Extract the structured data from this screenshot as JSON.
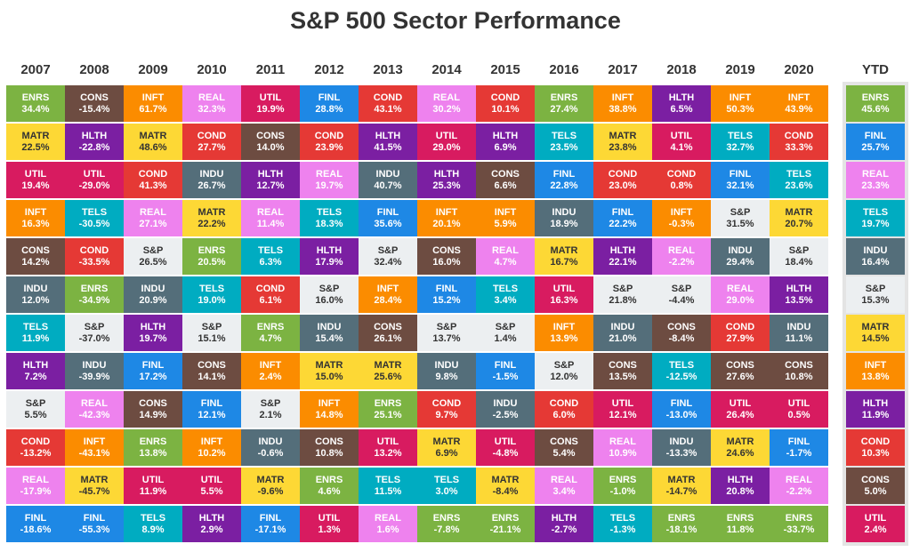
{
  "title": "S&P 500 Sector Performance",
  "colors": {
    "ENRS": "#7cb342",
    "CONS": "#6d4c41",
    "INFT": "#fb8c00",
    "REAL": "#ee82ee",
    "UTIL": "#d81b60",
    "FINL": "#1e88e5",
    "COND": "#e53935",
    "HLTH": "#7b1fa2",
    "MATR": "#fdd835",
    "TELS": "#00acc1",
    "INDU": "#546e7a",
    "S&P": "#eceff1"
  },
  "chart_data": {
    "type": "table",
    "title": "S&P 500 Sector Performance",
    "columns": [
      {
        "label": "2007",
        "cells": [
          {
            "sector": "ENRS",
            "value": "34.4%"
          },
          {
            "sector": "MATR",
            "value": "22.5%"
          },
          {
            "sector": "UTIL",
            "value": "19.4%"
          },
          {
            "sector": "INFT",
            "value": "16.3%"
          },
          {
            "sector": "CONS",
            "value": "14.2%"
          },
          {
            "sector": "INDU",
            "value": "12.0%"
          },
          {
            "sector": "TELS",
            "value": "11.9%"
          },
          {
            "sector": "HLTH",
            "value": "7.2%"
          },
          {
            "sector": "S&P",
            "value": "5.5%"
          },
          {
            "sector": "COND",
            "value": "-13.2%"
          },
          {
            "sector": "REAL",
            "value": "-17.9%"
          },
          {
            "sector": "FINL",
            "value": "-18.6%"
          }
        ]
      },
      {
        "label": "2008",
        "cells": [
          {
            "sector": "CONS",
            "value": "-15.4%"
          },
          {
            "sector": "HLTH",
            "value": "-22.8%"
          },
          {
            "sector": "UTIL",
            "value": "-29.0%"
          },
          {
            "sector": "TELS",
            "value": "-30.5%"
          },
          {
            "sector": "COND",
            "value": "-33.5%"
          },
          {
            "sector": "ENRS",
            "value": "-34.9%"
          },
          {
            "sector": "S&P",
            "value": "-37.0%"
          },
          {
            "sector": "INDU",
            "value": "-39.9%"
          },
          {
            "sector": "REAL",
            "value": "-42.3%"
          },
          {
            "sector": "INFT",
            "value": "-43.1%"
          },
          {
            "sector": "MATR",
            "value": "-45.7%"
          },
          {
            "sector": "FINL",
            "value": "-55.3%"
          }
        ]
      },
      {
        "label": "2009",
        "cells": [
          {
            "sector": "INFT",
            "value": "61.7%"
          },
          {
            "sector": "MATR",
            "value": "48.6%"
          },
          {
            "sector": "COND",
            "value": "41.3%"
          },
          {
            "sector": "REAL",
            "value": "27.1%"
          },
          {
            "sector": "S&P",
            "value": "26.5%"
          },
          {
            "sector": "INDU",
            "value": "20.9%"
          },
          {
            "sector": "HLTH",
            "value": "19.7%"
          },
          {
            "sector": "FINL",
            "value": "17.2%"
          },
          {
            "sector": "CONS",
            "value": "14.9%"
          },
          {
            "sector": "ENRS",
            "value": "13.8%"
          },
          {
            "sector": "UTIL",
            "value": "11.9%"
          },
          {
            "sector": "TELS",
            "value": "8.9%"
          }
        ]
      },
      {
        "label": "2010",
        "cells": [
          {
            "sector": "REAL",
            "value": "32.3%"
          },
          {
            "sector": "COND",
            "value": "27.7%"
          },
          {
            "sector": "INDU",
            "value": "26.7%"
          },
          {
            "sector": "MATR",
            "value": "22.2%"
          },
          {
            "sector": "ENRS",
            "value": "20.5%"
          },
          {
            "sector": "TELS",
            "value": "19.0%"
          },
          {
            "sector": "S&P",
            "value": "15.1%"
          },
          {
            "sector": "CONS",
            "value": "14.1%"
          },
          {
            "sector": "FINL",
            "value": "12.1%"
          },
          {
            "sector": "INFT",
            "value": "10.2%"
          },
          {
            "sector": "UTIL",
            "value": "5.5%"
          },
          {
            "sector": "HLTH",
            "value": "2.9%"
          }
        ]
      },
      {
        "label": "2011",
        "cells": [
          {
            "sector": "UTIL",
            "value": "19.9%"
          },
          {
            "sector": "CONS",
            "value": "14.0%"
          },
          {
            "sector": "HLTH",
            "value": "12.7%"
          },
          {
            "sector": "REAL",
            "value": "11.4%"
          },
          {
            "sector": "TELS",
            "value": "6.3%"
          },
          {
            "sector": "COND",
            "value": "6.1%"
          },
          {
            "sector": "ENRS",
            "value": "4.7%"
          },
          {
            "sector": "INFT",
            "value": "2.4%"
          },
          {
            "sector": "S&P",
            "value": "2.1%"
          },
          {
            "sector": "INDU",
            "value": "-0.6%"
          },
          {
            "sector": "MATR",
            "value": "-9.6%"
          },
          {
            "sector": "FINL",
            "value": "-17.1%"
          }
        ]
      },
      {
        "label": "2012",
        "cells": [
          {
            "sector": "FINL",
            "value": "28.8%"
          },
          {
            "sector": "COND",
            "value": "23.9%"
          },
          {
            "sector": "REAL",
            "value": "19.7%"
          },
          {
            "sector": "TELS",
            "value": "18.3%"
          },
          {
            "sector": "HLTH",
            "value": "17.9%"
          },
          {
            "sector": "S&P",
            "value": "16.0%"
          },
          {
            "sector": "INDU",
            "value": "15.4%"
          },
          {
            "sector": "MATR",
            "value": "15.0%"
          },
          {
            "sector": "INFT",
            "value": "14.8%"
          },
          {
            "sector": "CONS",
            "value": "10.8%"
          },
          {
            "sector": "ENRS",
            "value": "4.6%"
          },
          {
            "sector": "UTIL",
            "value": "1.3%"
          }
        ]
      },
      {
        "label": "2013",
        "cells": [
          {
            "sector": "COND",
            "value": "43.1%"
          },
          {
            "sector": "HLTH",
            "value": "41.5%"
          },
          {
            "sector": "INDU",
            "value": "40.7%"
          },
          {
            "sector": "FINL",
            "value": "35.6%"
          },
          {
            "sector": "S&P",
            "value": "32.4%"
          },
          {
            "sector": "INFT",
            "value": "28.4%"
          },
          {
            "sector": "CONS",
            "value": "26.1%"
          },
          {
            "sector": "MATR",
            "value": "25.6%"
          },
          {
            "sector": "ENRS",
            "value": "25.1%"
          },
          {
            "sector": "UTIL",
            "value": "13.2%"
          },
          {
            "sector": "TELS",
            "value": "11.5%"
          },
          {
            "sector": "REAL",
            "value": "1.6%"
          }
        ]
      },
      {
        "label": "2014",
        "cells": [
          {
            "sector": "REAL",
            "value": "30.2%"
          },
          {
            "sector": "UTIL",
            "value": "29.0%"
          },
          {
            "sector": "HLTH",
            "value": "25.3%"
          },
          {
            "sector": "INFT",
            "value": "20.1%"
          },
          {
            "sector": "CONS",
            "value": "16.0%"
          },
          {
            "sector": "FINL",
            "value": "15.2%"
          },
          {
            "sector": "S&P",
            "value": "13.7%"
          },
          {
            "sector": "INDU",
            "value": "9.8%"
          },
          {
            "sector": "COND",
            "value": "9.7%"
          },
          {
            "sector": "MATR",
            "value": "6.9%"
          },
          {
            "sector": "TELS",
            "value": "3.0%"
          },
          {
            "sector": "ENRS",
            "value": "-7.8%"
          }
        ]
      },
      {
        "label": "2015",
        "cells": [
          {
            "sector": "COND",
            "value": "10.1%"
          },
          {
            "sector": "HLTH",
            "value": "6.9%"
          },
          {
            "sector": "CONS",
            "value": "6.6%"
          },
          {
            "sector": "INFT",
            "value": "5.9%"
          },
          {
            "sector": "REAL",
            "value": "4.7%"
          },
          {
            "sector": "TELS",
            "value": "3.4%"
          },
          {
            "sector": "S&P",
            "value": "1.4%"
          },
          {
            "sector": "FINL",
            "value": "-1.5%"
          },
          {
            "sector": "INDU",
            "value": "-2.5%"
          },
          {
            "sector": "UTIL",
            "value": "-4.8%"
          },
          {
            "sector": "MATR",
            "value": "-8.4%"
          },
          {
            "sector": "ENRS",
            "value": "-21.1%"
          }
        ]
      },
      {
        "label": "2016",
        "cells": [
          {
            "sector": "ENRS",
            "value": "27.4%"
          },
          {
            "sector": "TELS",
            "value": "23.5%"
          },
          {
            "sector": "FINL",
            "value": "22.8%"
          },
          {
            "sector": "INDU",
            "value": "18.9%"
          },
          {
            "sector": "MATR",
            "value": "16.7%"
          },
          {
            "sector": "UTIL",
            "value": "16.3%"
          },
          {
            "sector": "INFT",
            "value": "13.9%"
          },
          {
            "sector": "S&P",
            "value": "12.0%"
          },
          {
            "sector": "COND",
            "value": "6.0%"
          },
          {
            "sector": "CONS",
            "value": "5.4%"
          },
          {
            "sector": "REAL",
            "value": "3.4%"
          },
          {
            "sector": "HLTH",
            "value": "-2.7%"
          }
        ]
      },
      {
        "label": "2017",
        "cells": [
          {
            "sector": "INFT",
            "value": "38.8%"
          },
          {
            "sector": "MATR",
            "value": "23.8%"
          },
          {
            "sector": "COND",
            "value": "23.0%"
          },
          {
            "sector": "FINL",
            "value": "22.2%"
          },
          {
            "sector": "HLTH",
            "value": "22.1%"
          },
          {
            "sector": "S&P",
            "value": "21.8%"
          },
          {
            "sector": "INDU",
            "value": "21.0%"
          },
          {
            "sector": "CONS",
            "value": "13.5%"
          },
          {
            "sector": "UTIL",
            "value": "12.1%"
          },
          {
            "sector": "REAL",
            "value": "10.9%"
          },
          {
            "sector": "ENRS",
            "value": "-1.0%"
          },
          {
            "sector": "TELS",
            "value": "-1.3%"
          }
        ]
      },
      {
        "label": "2018",
        "cells": [
          {
            "sector": "HLTH",
            "value": "6.5%"
          },
          {
            "sector": "UTIL",
            "value": "4.1%"
          },
          {
            "sector": "COND",
            "value": "0.8%"
          },
          {
            "sector": "INFT",
            "value": "-0.3%"
          },
          {
            "sector": "REAL",
            "value": "-2.2%"
          },
          {
            "sector": "S&P",
            "value": "-4.4%"
          },
          {
            "sector": "CONS",
            "value": "-8.4%"
          },
          {
            "sector": "TELS",
            "value": "-12.5%"
          },
          {
            "sector": "FINL",
            "value": "-13.0%"
          },
          {
            "sector": "INDU",
            "value": "-13.3%"
          },
          {
            "sector": "MATR",
            "value": "-14.7%"
          },
          {
            "sector": "ENRS",
            "value": "-18.1%"
          }
        ]
      },
      {
        "label": "2019",
        "cells": [
          {
            "sector": "INFT",
            "value": "50.3%"
          },
          {
            "sector": "TELS",
            "value": "32.7%"
          },
          {
            "sector": "FINL",
            "value": "32.1%"
          },
          {
            "sector": "S&P",
            "value": "31.5%"
          },
          {
            "sector": "INDU",
            "value": "29.4%"
          },
          {
            "sector": "REAL",
            "value": "29.0%"
          },
          {
            "sector": "COND",
            "value": "27.9%"
          },
          {
            "sector": "CONS",
            "value": "27.6%"
          },
          {
            "sector": "UTIL",
            "value": "26.4%"
          },
          {
            "sector": "MATR",
            "value": "24.6%"
          },
          {
            "sector": "HLTH",
            "value": "20.8%"
          },
          {
            "sector": "ENRS",
            "value": "11.8%"
          }
        ]
      },
      {
        "label": "2020",
        "cells": [
          {
            "sector": "INFT",
            "value": "43.9%"
          },
          {
            "sector": "COND",
            "value": "33.3%"
          },
          {
            "sector": "TELS",
            "value": "23.6%"
          },
          {
            "sector": "MATR",
            "value": "20.7%"
          },
          {
            "sector": "S&P",
            "value": "18.4%"
          },
          {
            "sector": "HLTH",
            "value": "13.5%"
          },
          {
            "sector": "INDU",
            "value": "11.1%"
          },
          {
            "sector": "CONS",
            "value": "10.8%"
          },
          {
            "sector": "UTIL",
            "value": "0.5%"
          },
          {
            "sector": "FINL",
            "value": "-1.7%"
          },
          {
            "sector": "REAL",
            "value": "-2.2%"
          },
          {
            "sector": "ENRS",
            "value": "-33.7%"
          }
        ]
      },
      {
        "label": "YTD",
        "cells": [
          {
            "sector": "ENRS",
            "value": "45.6%"
          },
          {
            "sector": "FINL",
            "value": "25.7%"
          },
          {
            "sector": "REAL",
            "value": "23.3%"
          },
          {
            "sector": "TELS",
            "value": "19.7%"
          },
          {
            "sector": "INDU",
            "value": "16.4%"
          },
          {
            "sector": "S&P",
            "value": "15.3%"
          },
          {
            "sector": "MATR",
            "value": "14.5%"
          },
          {
            "sector": "INFT",
            "value": "13.8%"
          },
          {
            "sector": "HLTH",
            "value": "11.9%"
          },
          {
            "sector": "COND",
            "value": "10.3%"
          },
          {
            "sector": "CONS",
            "value": "5.0%"
          },
          {
            "sector": "UTIL",
            "value": "2.4%"
          }
        ]
      }
    ]
  }
}
